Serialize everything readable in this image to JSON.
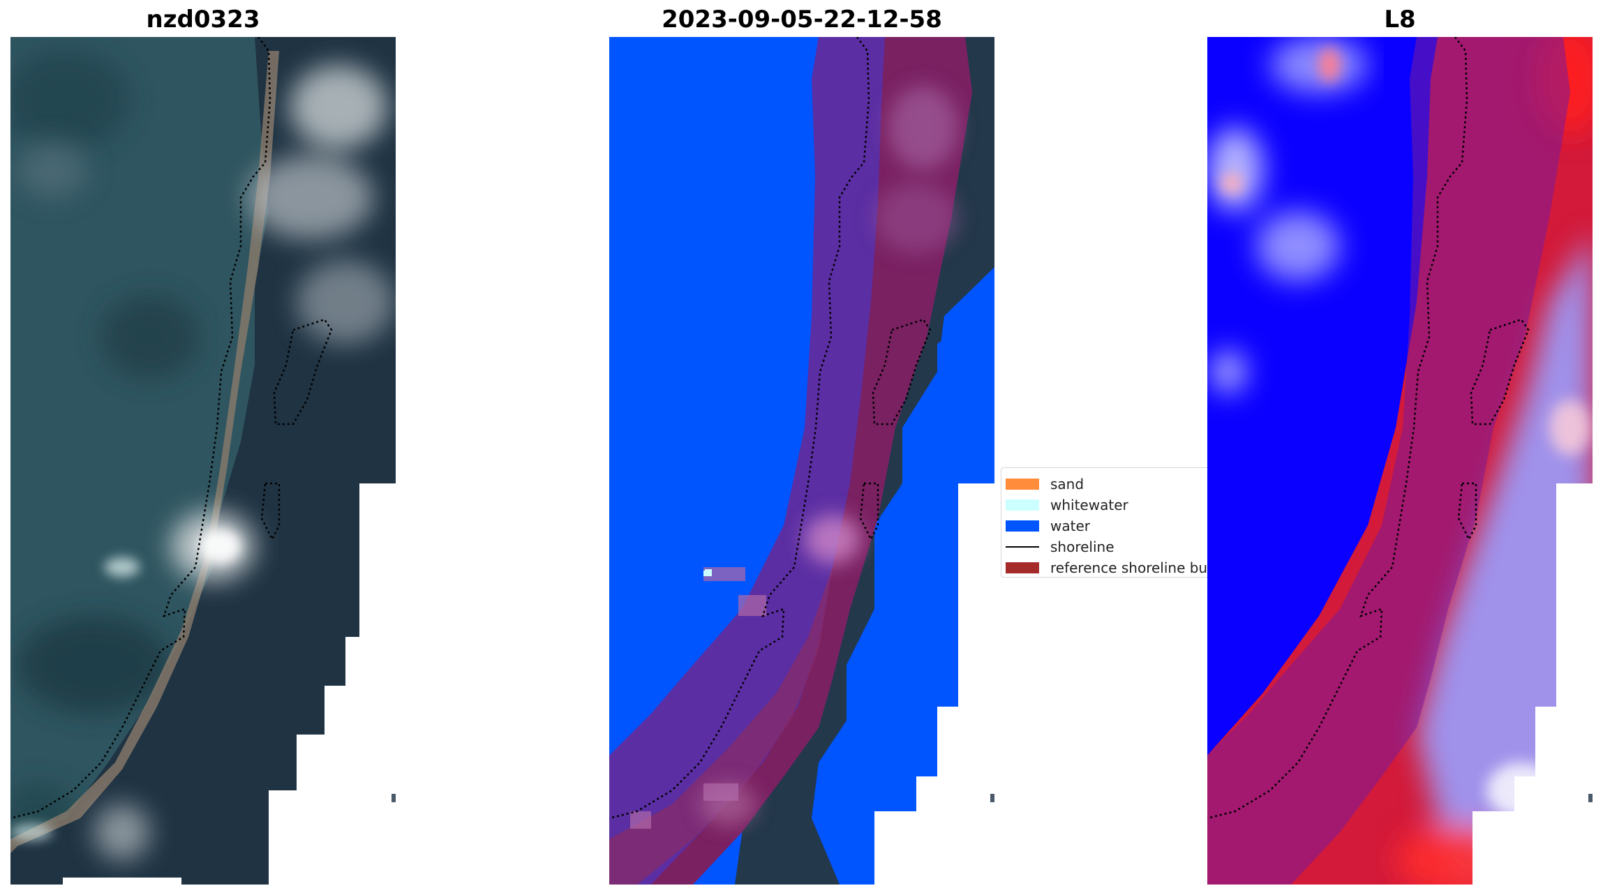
{
  "panels": {
    "left": {
      "title": "nzd0323"
    },
    "middle": {
      "title": "2023-09-05-22-12-58"
    },
    "right": {
      "title": "L8"
    }
  },
  "legend": {
    "items": [
      {
        "label": "sand",
        "color": "#ff8c3a"
      },
      {
        "label": "whitewater",
        "color": "#ccffff"
      },
      {
        "label": "water",
        "color": "#0055ff"
      },
      {
        "label": "shoreline",
        "color": "#000000"
      },
      {
        "label": "reference shoreline bu",
        "color": "#a52a2a"
      }
    ]
  }
}
